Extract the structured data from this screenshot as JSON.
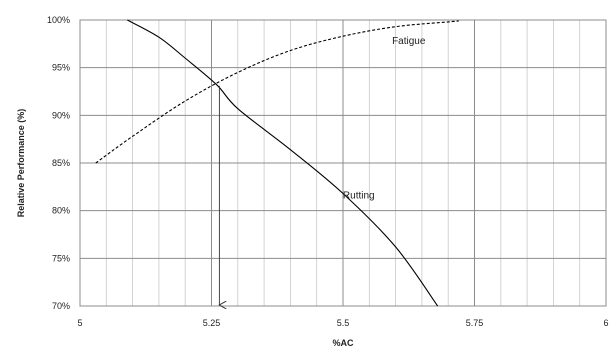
{
  "chart_data": {
    "type": "line",
    "xlabel": "%AC",
    "ylabel": "Relative Performance (%)",
    "xlim": [
      5,
      6
    ],
    "ylim": [
      70,
      100
    ],
    "x_ticks": [
      5,
      5.25,
      5.5,
      5.75,
      6
    ],
    "x_tick_labels": [
      "5",
      "5.25",
      "5.5",
      "5.75",
      "6"
    ],
    "x_minor_gridlines": [
      5.05,
      5.1,
      5.15,
      5.2,
      5.3,
      5.35,
      5.4,
      5.45,
      5.55,
      5.6,
      5.65,
      5.7,
      5.8,
      5.85,
      5.9,
      5.95
    ],
    "y_ticks": [
      70,
      75,
      80,
      85,
      90,
      95,
      100
    ],
    "y_tick_labels": [
      "70%",
      "75%",
      "80%",
      "85%",
      "90%",
      "95%",
      "100%"
    ],
    "grid": true,
    "series": [
      {
        "name": "Fatigue",
        "style": "dashed",
        "color": "#000000",
        "x": [
          5.03,
          5.1,
          5.2,
          5.3,
          5.4,
          5.5,
          5.6,
          5.7,
          5.72
        ],
        "y": [
          85,
          87.8,
          91.5,
          94.5,
          96.8,
          98.3,
          99.3,
          99.8,
          99.9
        ]
      },
      {
        "name": "Rutting",
        "style": "solid",
        "color": "#000000",
        "x": [
          5.09,
          5.15,
          5.2,
          5.26,
          5.3,
          5.4,
          5.5,
          5.6,
          5.68
        ],
        "y": [
          100,
          98.2,
          96,
          93.2,
          90.7,
          86.4,
          81.8,
          76.2,
          70
        ]
      }
    ],
    "annotations": [
      {
        "text": "Fatigue",
        "x": 5.625,
        "y": 97.5
      },
      {
        "text": "Rutting",
        "x": 5.53,
        "y": 81.3
      }
    ],
    "arrow": {
      "x": 5.265,
      "y_from": 93.1,
      "y_to": 70
    }
  }
}
